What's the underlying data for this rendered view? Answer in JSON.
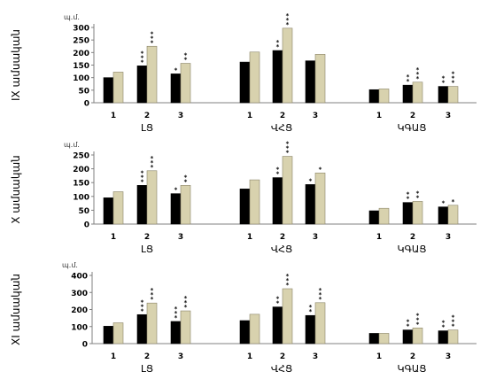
{
  "colors": {
    "series_dark": "#000000",
    "series_light": "#d8d2ae",
    "light_edge": "#8a8468",
    "axis": "#808080",
    "grid": "#b0b0b0",
    "background": "#ffffff"
  },
  "chart_data": [
    {
      "type": "bar",
      "row_label": "IX ամսական",
      "unit_label": "պ.մ.",
      "ylim": [
        0,
        300
      ],
      "yticks": [
        "0",
        "50",
        "100",
        "150",
        "200",
        "250",
        "300"
      ],
      "grid": false,
      "groups": [
        {
          "name": "ԼՑ",
          "categories": [
            "1",
            "2",
            "3"
          ],
          "series": [
            {
              "values": [
                100,
                147,
                115
              ]
            },
            {
              "values": [
                122,
                225,
                157
              ]
            }
          ],
          "annotations": [
            [
              "",
              ""
            ],
            [
              "***",
              "***"
            ],
            [
              "*",
              "**"
            ]
          ]
        },
        {
          "name": "ՎՀՑ",
          "categories": [
            "1",
            "2",
            "3"
          ],
          "series": [
            {
              "values": [
                162,
                208,
                167
              ]
            },
            {
              "values": [
                202,
                297,
                193
              ]
            }
          ],
          "annotations": [
            [
              "",
              ""
            ],
            [
              "**",
              "***"
            ],
            [
              "",
              ""
            ]
          ]
        },
        {
          "name": "ԿԳԱՑ",
          "categories": [
            "1",
            "2",
            "3"
          ],
          "series": [
            {
              "values": [
                52,
                70,
                65
              ]
            },
            {
              "values": [
                55,
                82,
                65
              ]
            }
          ],
          "annotations": [
            [
              "",
              ""
            ],
            [
              "**",
              "***"
            ],
            [
              "**",
              "***"
            ]
          ]
        }
      ]
    },
    {
      "type": "bar",
      "row_label": "X ամսական",
      "unit_label": "պ.մ.",
      "ylim": [
        0,
        250
      ],
      "yticks": [
        "0",
        "50",
        "100",
        "150",
        "200",
        "250"
      ],
      "grid": false,
      "groups": [
        {
          "name": "ԼՑ",
          "categories": [
            "1",
            "2",
            "3"
          ],
          "series": [
            {
              "values": [
                95,
                140,
                110
              ]
            },
            {
              "values": [
                117,
                193,
                140
              ]
            }
          ],
          "annotations": [
            [
              "",
              ""
            ],
            [
              "***",
              "***"
            ],
            [
              "*",
              "**"
            ]
          ]
        },
        {
          "name": "ՎՀՑ",
          "categories": [
            "1",
            "2",
            "3"
          ],
          "series": [
            {
              "values": [
                127,
                168,
                143
              ]
            },
            {
              "values": [
                160,
                245,
                185
              ]
            }
          ],
          "annotations": [
            [
              "",
              ""
            ],
            [
              "**",
              "***"
            ],
            [
              "*",
              "*"
            ]
          ]
        },
        {
          "name": "ԿԳԱՑ",
          "categories": [
            "1",
            "2",
            "3"
          ],
          "series": [
            {
              "values": [
                48,
                78,
                62
              ]
            },
            {
              "values": [
                57,
                82,
                68
              ]
            }
          ],
          "annotations": [
            [
              "",
              ""
            ],
            [
              "**",
              "**"
            ],
            [
              "*",
              "*"
            ]
          ]
        }
      ]
    },
    {
      "type": "bar",
      "row_label": "XI ամսական",
      "unit_label": "պ.մ.",
      "ylim": [
        0,
        400
      ],
      "yticks": [
        "0",
        "100",
        "200",
        "300",
        "400"
      ],
      "grid": false,
      "groups": [
        {
          "name": "ԼՑ",
          "categories": [
            "1",
            "2",
            "3"
          ],
          "series": [
            {
              "values": [
                102,
                170,
                130
              ]
            },
            {
              "values": [
                122,
                238,
                192
              ]
            }
          ],
          "annotations": [
            [
              "",
              ""
            ],
            [
              "***",
              "***"
            ],
            [
              "***",
              "***"
            ]
          ]
        },
        {
          "name": "ՎՀՑ",
          "categories": [
            "1",
            "2",
            "3"
          ],
          "series": [
            {
              "values": [
                135,
                215,
                165
              ]
            },
            {
              "values": [
                172,
                322,
                240
              ]
            }
          ],
          "annotations": [
            [
              "",
              ""
            ],
            [
              "**",
              "***"
            ],
            [
              "**",
              "***"
            ]
          ]
        },
        {
          "name": "ԿԳԱՑ",
          "categories": [
            "1",
            "2",
            "3"
          ],
          "series": [
            {
              "values": [
                60,
                80,
                75
              ]
            },
            {
              "values": [
                60,
                92,
                80
              ]
            }
          ],
          "annotations": [
            [
              "",
              ""
            ],
            [
              "**",
              "***"
            ],
            [
              "**",
              "***"
            ]
          ]
        }
      ]
    }
  ]
}
